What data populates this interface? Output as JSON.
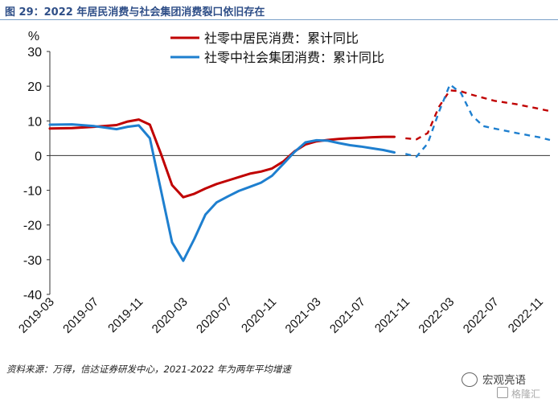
{
  "header": {
    "title": "图 29：2022 年居民消费与社会集团消费裂口依旧存在"
  },
  "footer": {
    "source": "资料来源：万得，信达证券研发中心，2021-2022 年为两年平均增速"
  },
  "watermark": {
    "line1": "宏观亮语",
    "line2": "格隆汇"
  },
  "chart_data": {
    "type": "line",
    "ylabel": "%",
    "ylim": [
      -40,
      30
    ],
    "yticks": [
      30,
      20,
      10,
      0,
      -10,
      -20,
      -30,
      -40
    ],
    "xlim": [
      "2019-03",
      "2022-12"
    ],
    "xticks": [
      "2019-03",
      "2019-07",
      "2019-11",
      "2020-03",
      "2020-07",
      "2020-11",
      "2021-03",
      "2021-07",
      "2021-11",
      "2022-03",
      "2022-07",
      "2022-11"
    ],
    "grid": false,
    "legend_position": "top",
    "series": [
      {
        "name": "社零中居民消费：累计同比",
        "color": "#c00000",
        "x": [
          "2019-03",
          "2019-05",
          "2019-07",
          "2019-09",
          "2019-10",
          "2019-11",
          "2019-12",
          "2020-01",
          "2020-02",
          "2020-03",
          "2020-04",
          "2020-05",
          "2020-06",
          "2020-07",
          "2020-08",
          "2020-09",
          "2020-10",
          "2020-11",
          "2020-12",
          "2021-01",
          "2021-02",
          "2021-03",
          "2021-04",
          "2021-05",
          "2021-06",
          "2021-07",
          "2021-08",
          "2021-09",
          "2021-10"
        ],
        "values": [
          7.8,
          7.9,
          8.3,
          8.8,
          9.8,
          10.4,
          8.9,
          0.5,
          -8.5,
          -12.0,
          -11.0,
          -9.5,
          -8.2,
          -7.2,
          -6.2,
          -5.2,
          -4.6,
          -3.7,
          -1.7,
          1.2,
          3.2,
          4.1,
          4.5,
          4.8,
          5.0,
          5.1,
          5.3,
          5.4,
          5.4
        ]
      },
      {
        "name": "社零中社会集团消费：累计同比",
        "color": "#1e7fcf",
        "x": [
          "2019-03",
          "2019-05",
          "2019-07",
          "2019-09",
          "2019-10",
          "2019-11",
          "2019-12",
          "2020-01",
          "2020-02",
          "2020-03",
          "2020-04",
          "2020-05",
          "2020-06",
          "2020-07",
          "2020-08",
          "2020-09",
          "2020-10",
          "2020-11",
          "2020-12",
          "2021-01",
          "2021-02",
          "2021-03",
          "2021-04",
          "2021-05",
          "2021-06",
          "2021-07",
          "2021-08",
          "2021-09",
          "2021-10"
        ],
        "values": [
          8.9,
          9.0,
          8.5,
          7.6,
          8.3,
          8.7,
          5.0,
          -10.0,
          -25.0,
          -30.3,
          -24.0,
          -17.0,
          -13.5,
          -11.8,
          -10.2,
          -9.0,
          -7.8,
          -5.8,
          -2.4,
          1.0,
          3.8,
          4.4,
          4.3,
          3.6,
          3.0,
          2.6,
          2.1,
          1.6,
          0.9
        ]
      },
      {
        "name": "",
        "color": "#c00000",
        "dashed": true,
        "x": [
          "2021-11",
          "2021-12",
          "2022-01",
          "2022-02",
          "2022-03",
          "2022-04",
          "2022-05",
          "2022-07",
          "2022-09",
          "2022-11",
          "2022-12"
        ],
        "values": [
          5.0,
          4.7,
          6.5,
          14.0,
          18.8,
          18.5,
          17.5,
          15.8,
          14.8,
          13.5,
          12.8
        ]
      },
      {
        "name": "",
        "color": "#1e7fcf",
        "dashed": true,
        "x": [
          "2021-11",
          "2021-12",
          "2022-01",
          "2022-02",
          "2022-03",
          "2022-04",
          "2022-05",
          "2022-06",
          "2022-07",
          "2022-09",
          "2022-11",
          "2022-12"
        ],
        "values": [
          0.5,
          -0.3,
          3.5,
          12.5,
          20.5,
          18.0,
          11.5,
          8.5,
          7.8,
          6.5,
          5.3,
          4.5
        ]
      }
    ]
  }
}
